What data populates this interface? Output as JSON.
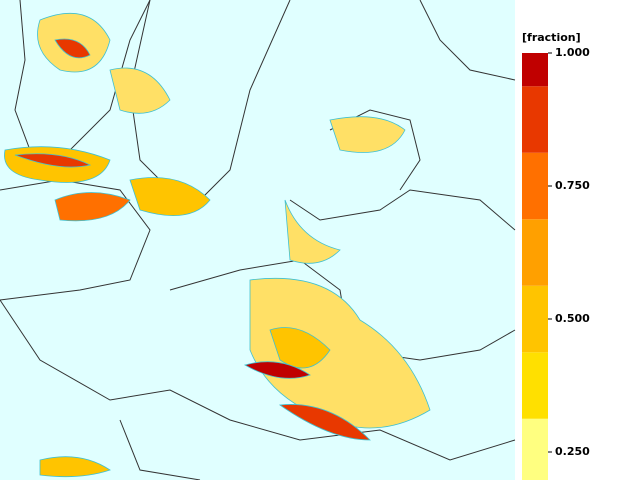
{
  "legend": {
    "title": "[fraction]",
    "ticks": [
      {
        "value": 1,
        "label": "1.000"
      },
      {
        "value": 0.75,
        "label": "0.750"
      },
      {
        "value": 0.5,
        "label": "0.500"
      },
      {
        "value": 0.25,
        "label": "0.250"
      }
    ],
    "bins": [
      0.1875,
      0.3125,
      0.4375,
      0.5625,
      0.6875,
      0.8125,
      0.9375,
      1.0
    ],
    "colors": [
      "#ffff80",
      "#ffe000",
      "#ffc400",
      "#ffa000",
      "#ff7000",
      "#e83800",
      "#c00000"
    ]
  }
}
